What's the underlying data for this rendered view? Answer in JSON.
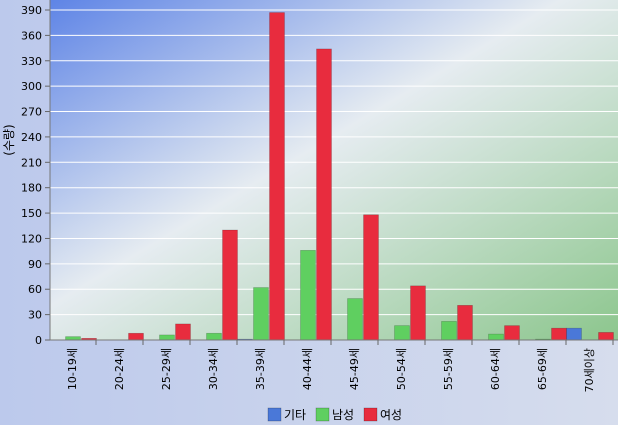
{
  "chart_data": {
    "type": "bar",
    "ylabel": "(수량)",
    "xlabel": "",
    "ylim": [
      0,
      390
    ],
    "y_ticks": [
      0,
      30,
      60,
      90,
      120,
      150,
      180,
      210,
      240,
      270,
      300,
      330,
      360,
      390
    ],
    "grid": true,
    "legend_position": "bottom-center",
    "categories": [
      "10-19세",
      "20-24세",
      "25-29세",
      "30-34세",
      "35-39세",
      "40-44세",
      "45-49세",
      "50-54세",
      "55-59세",
      "60-64세",
      "65-69세",
      "70세이상"
    ],
    "series": [
      {
        "name": "기타",
        "color": "#4a78d8",
        "values": [
          0,
          0,
          0,
          0,
          1,
          0,
          0,
          0,
          0,
          0,
          0,
          14
        ]
      },
      {
        "name": "남성",
        "color": "#5fcf60",
        "values": [
          4,
          0,
          6,
          8,
          62,
          106,
          49,
          17,
          22,
          7,
          1,
          0
        ]
      },
      {
        "name": "여성",
        "color": "#e82c3e",
        "values": [
          2,
          8,
          19,
          130,
          387,
          344,
          148,
          64,
          41,
          17,
          14,
          9
        ]
      }
    ]
  }
}
